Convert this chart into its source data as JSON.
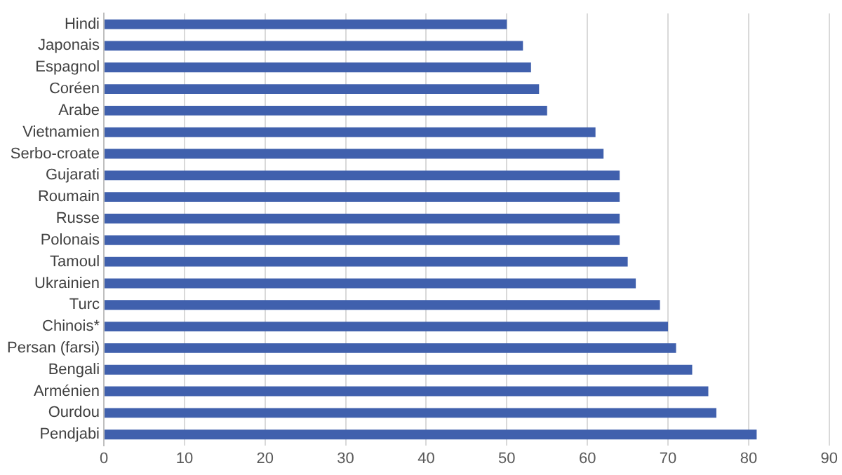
{
  "chart_data": {
    "type": "bar",
    "orientation": "horizontal",
    "categories": [
      "Hindi",
      "Japonais",
      "Espagnol",
      "Coréen",
      "Arabe",
      "Vietnamien",
      "Serbo-croate",
      "Gujarati",
      "Roumain",
      "Russe",
      "Polonais",
      "Tamoul",
      "Ukrainien",
      "Turc",
      "Chinois*",
      "Persan (farsi)",
      "Bengali",
      "Arménien",
      "Ourdou",
      "Pendjabi"
    ],
    "values": [
      50,
      52,
      53,
      54,
      55,
      61,
      62,
      64,
      64,
      64,
      64,
      65,
      66,
      69,
      70,
      71,
      73,
      75,
      76,
      81
    ],
    "color": "#4060ad",
    "xlim": [
      0,
      90
    ],
    "xticks": [
      0,
      10,
      20,
      30,
      40,
      50,
      60,
      70,
      80,
      90
    ],
    "grid": "x",
    "legend": false
  }
}
